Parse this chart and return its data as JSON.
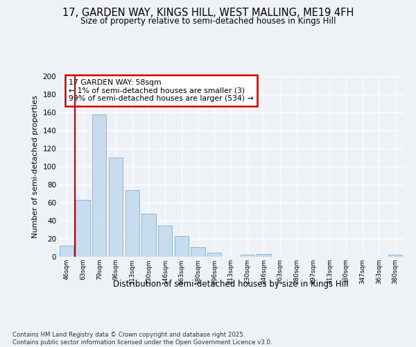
{
  "title1": "17, GARDEN WAY, KINGS HILL, WEST MALLING, ME19 4FH",
  "title2": "Size of property relative to semi-detached houses in Kings Hill",
  "xlabel": "Distribution of semi-detached houses by size in Kings Hill",
  "ylabel": "Number of semi-detached properties",
  "categories": [
    "46sqm",
    "63sqm",
    "79sqm",
    "96sqm",
    "113sqm",
    "130sqm",
    "146sqm",
    "163sqm",
    "180sqm",
    "196sqm",
    "213sqm",
    "230sqm",
    "246sqm",
    "263sqm",
    "280sqm",
    "297sqm",
    "313sqm",
    "330sqm",
    "347sqm",
    "363sqm",
    "380sqm"
  ],
  "values": [
    12,
    63,
    158,
    110,
    74,
    48,
    35,
    23,
    11,
    5,
    0,
    2,
    3,
    0,
    0,
    0,
    0,
    0,
    0,
    0,
    2
  ],
  "bar_color": "#c8dcf0",
  "bar_edge_color": "#7ab0d8",
  "marker_line_color": "#cc0000",
  "annotation_text1": "17 GARDEN WAY: 58sqm",
  "annotation_text2": "← 1% of semi-detached houses are smaller (3)",
  "annotation_text3": "99% of semi-detached houses are larger (534) →",
  "ylim": [
    0,
    200
  ],
  "yticks": [
    0,
    20,
    40,
    60,
    80,
    100,
    120,
    140,
    160,
    180,
    200
  ],
  "bg_color": "#eef2f7",
  "grid_color": "#ffffff",
  "footer_text": "Contains HM Land Registry data © Crown copyright and database right 2025.\nContains public sector information licensed under the Open Government Licence v3.0."
}
